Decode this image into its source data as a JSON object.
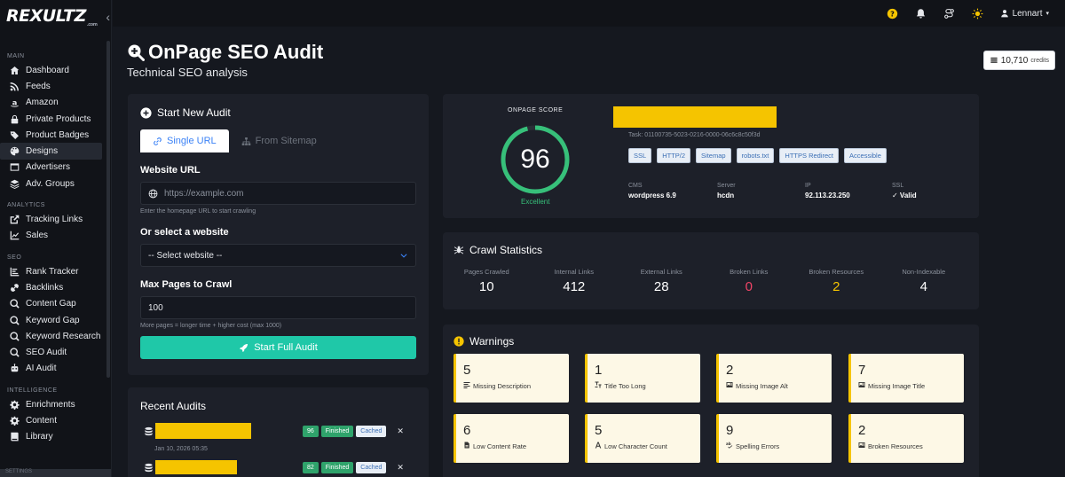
{
  "app": {
    "logo": "REXULTZ",
    "logo_suffix": ".com"
  },
  "sidebar": {
    "sections": [
      {
        "label": "MAIN",
        "items": [
          "Dashboard",
          "Feeds",
          "Amazon",
          "Private Products",
          "Product Badges",
          "Designs",
          "Advertisers",
          "Adv. Groups"
        ]
      },
      {
        "label": "ANALYTICS",
        "items": [
          "Tracking Links",
          "Sales"
        ]
      },
      {
        "label": "SEO",
        "items": [
          "Rank Tracker",
          "Backlinks",
          "Content Gap",
          "Keyword Gap",
          "Keyword Research",
          "SEO Audit",
          "AI Audit"
        ]
      },
      {
        "label": "INTELLIGENCE",
        "items": [
          "Enrichments",
          "Content",
          "Library"
        ]
      }
    ],
    "footer": "SETTINGS",
    "active": "Designs"
  },
  "topbar": {
    "user": "Lennart"
  },
  "header": {
    "title": "OnPage SEO Audit",
    "subtitle": "Technical SEO analysis",
    "credits_value": "10,710",
    "credits_label": "credits"
  },
  "start": {
    "title": "Start New Audit",
    "tab_single": "Single URL",
    "tab_sitemap": "From Sitemap",
    "url_label": "Website URL",
    "url_placeholder": "https://example.com",
    "url_hint": "Enter the homepage URL to start crawling",
    "select_label": "Or select a website",
    "select_value": "-- Select website --",
    "max_label": "Max Pages to Crawl",
    "max_value": "100",
    "max_hint": "More pages = longer time + higher cost (max 1000)",
    "button": "Start Full Audit"
  },
  "recent": {
    "title": "Recent Audits",
    "rows": [
      {
        "score": "96",
        "status": "Finished",
        "cache": "Cached",
        "date": "Jan 10, 2026 05:35"
      },
      {
        "score": "82",
        "status": "Finished",
        "cache": "Cached",
        "date": ""
      }
    ]
  },
  "score": {
    "label": "ONPAGE SCORE",
    "value": 96,
    "max": 100,
    "rating": "Excellent",
    "task": "Task: 01100735-5023-0216-0000-06c6c8c50f3d",
    "chips": [
      "SSL",
      "HTTP/2",
      "Sitemap",
      "robots.txt",
      "HTTPS Redirect",
      "Accessible"
    ],
    "meta": [
      {
        "label": "CMS",
        "value": "wordpress 6.9"
      },
      {
        "label": "Server",
        "value": "hcdn"
      },
      {
        "label": "IP",
        "value": "92.113.23.250"
      },
      {
        "label": "SSL",
        "value": "✓ Valid"
      }
    ],
    "colors": {
      "ring": "#37c07a",
      "track": "#2a2e36"
    }
  },
  "crawl": {
    "title": "Crawl Statistics",
    "stats": [
      {
        "label": "Pages Crawled",
        "value": "10",
        "color": "#ffffff"
      },
      {
        "label": "Internal Links",
        "value": "412",
        "color": "#ffffff"
      },
      {
        "label": "External Links",
        "value": "28",
        "color": "#ffffff"
      },
      {
        "label": "Broken Links",
        "value": "0",
        "color": "#ef4466"
      },
      {
        "label": "Broken Resources",
        "value": "2",
        "color": "#f5c400"
      },
      {
        "label": "Non-Indexable",
        "value": "4",
        "color": "#ffffff"
      }
    ]
  },
  "warnings": {
    "title": "Warnings",
    "items": [
      {
        "value": "5",
        "label": "Missing Description",
        "icon": "text-icon"
      },
      {
        "value": "1",
        "label": "Title Too Long",
        "icon": "heading-icon"
      },
      {
        "value": "2",
        "label": "Missing Image Alt",
        "icon": "image-icon"
      },
      {
        "value": "7",
        "label": "Missing Image Title",
        "icon": "image-icon"
      },
      {
        "value": "6",
        "label": "Low Content Rate",
        "icon": "file-icon"
      },
      {
        "value": "5",
        "label": "Low Character Count",
        "icon": "font-icon"
      },
      {
        "value": "9",
        "label": "Spelling Errors",
        "icon": "spellcheck-icon"
      },
      {
        "value": "2",
        "label": "Broken Resources",
        "icon": "image-icon"
      }
    ]
  }
}
